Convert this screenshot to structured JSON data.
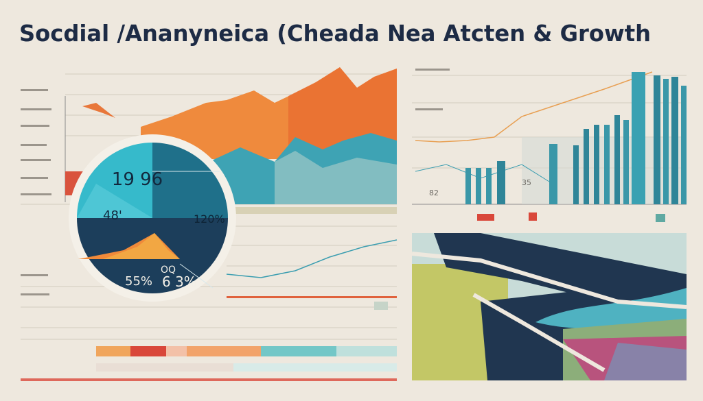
{
  "header": {
    "title": "Socdial /Ananyneica (Cheada Nea Atcten & Growth"
  },
  "pie": {
    "labels": [
      "19 96",
      "48'",
      "120%",
      "55%",
      "OQ",
      "6 3%"
    ]
  },
  "bar_panel": {
    "labels": [
      "82",
      "35"
    ]
  }
}
